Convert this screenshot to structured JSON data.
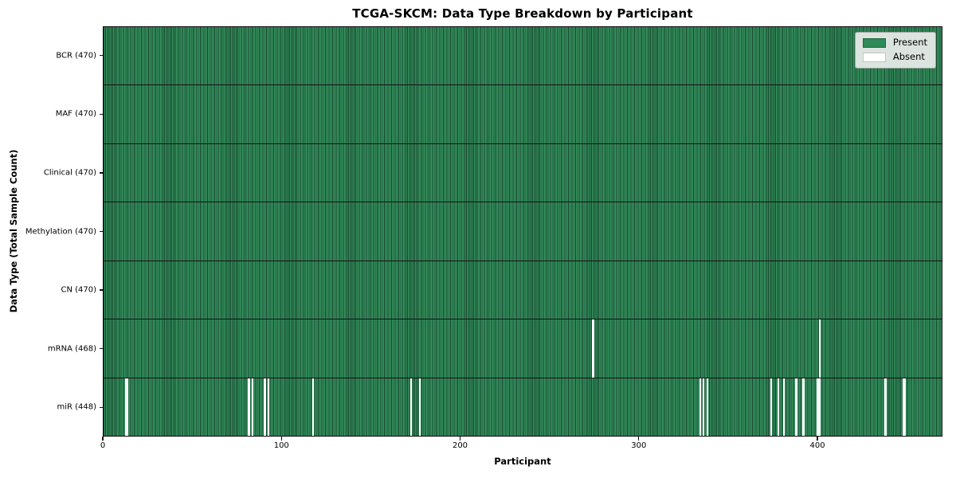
{
  "chart_data": {
    "type": "heatmap",
    "title": "TCGA-SKCM: Data Type Breakdown by Participant",
    "xlabel": "Participant",
    "ylabel": "Data Type (Total Sample Count)",
    "x_range": [
      0,
      470
    ],
    "x_ticks": [
      0,
      100,
      200,
      300,
      400
    ],
    "grid": false,
    "legend": {
      "position": "upper-right",
      "entries": [
        {
          "label": "Present",
          "color": "#2e8b57"
        },
        {
          "label": "Absent",
          "color": "#ffffff"
        }
      ]
    },
    "rows": [
      {
        "label": "BCR (470)",
        "data_type": "BCR",
        "present_count": 470,
        "absent_indices": []
      },
      {
        "label": "MAF (470)",
        "data_type": "MAF",
        "present_count": 470,
        "absent_indices": []
      },
      {
        "label": "Clinical (470)",
        "data_type": "Clinical",
        "present_count": 470,
        "absent_indices": []
      },
      {
        "label": "Methylation (470)",
        "data_type": "Methylation",
        "present_count": 470,
        "absent_indices": []
      },
      {
        "label": "CN (470)",
        "data_type": "CN",
        "present_count": 470,
        "absent_indices": []
      },
      {
        "label": "mRNA (468)",
        "data_type": "mRNA",
        "present_count": 468,
        "absent_indices": [
          274,
          401
        ]
      },
      {
        "label": "miR (448)",
        "data_type": "miR",
        "present_count": 448,
        "absent_indices": [
          12,
          13,
          81,
          83,
          90,
          92,
          117,
          172,
          177,
          334,
          336,
          338,
          374,
          378,
          381,
          388,
          392,
          400,
          401,
          438,
          448,
          449
        ]
      }
    ],
    "colors": {
      "present": "#2e8b57",
      "absent": "#ffffff",
      "bar_edge": "#14452c",
      "row_divider": "#141414"
    },
    "total_participants": 470
  }
}
